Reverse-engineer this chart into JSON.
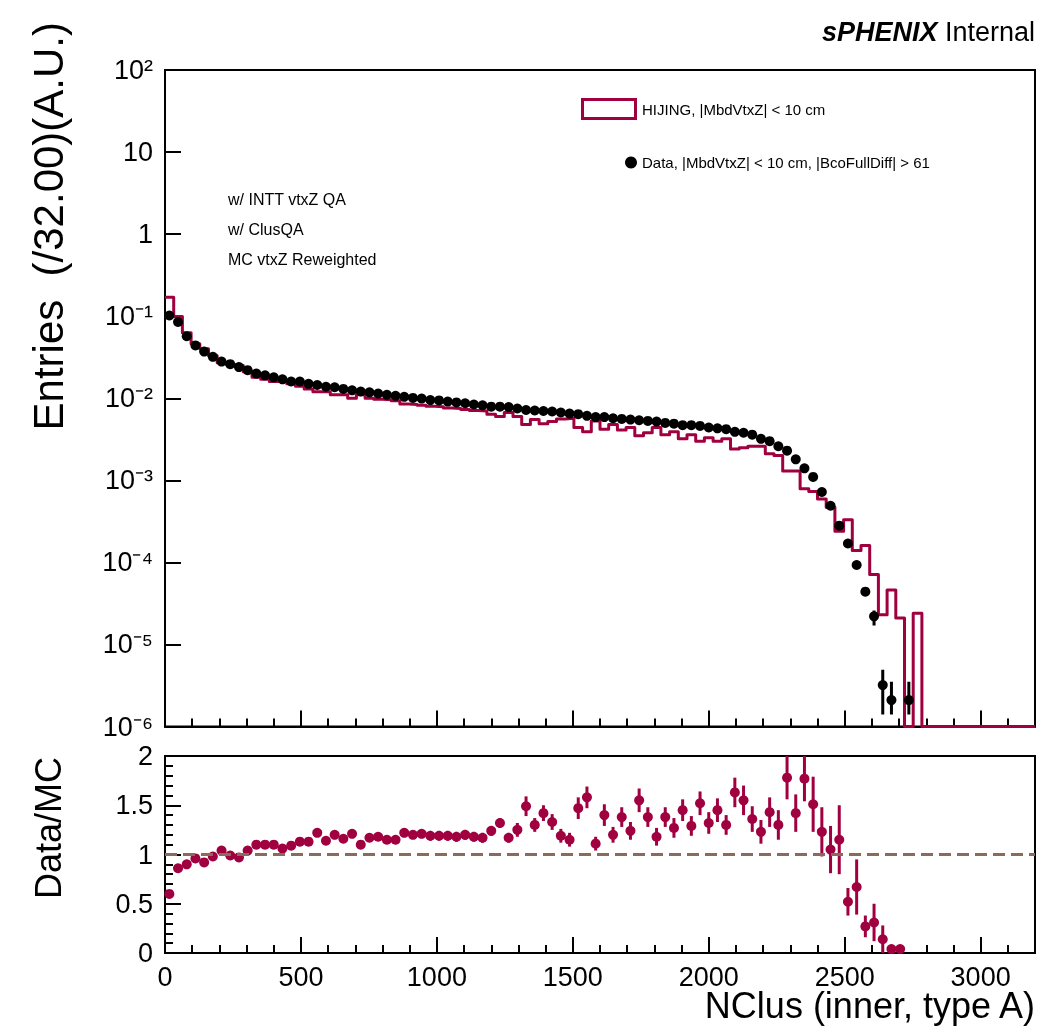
{
  "chart_data": [
    {
      "type": "histogram",
      "title": "sPHENIX Internal",
      "ylabel": "Entries  (/32.00)(A.U.)",
      "annotations": [
        "w/ INTT vtxZ QA",
        "w/ ClusQA",
        "MC vtxZ Reweighted"
      ],
      "bins": [
        0,
        32,
        64,
        96,
        128,
        160,
        192,
        224,
        256,
        288,
        320,
        352,
        384,
        416,
        448,
        480,
        512,
        544,
        576,
        608,
        640,
        672,
        704,
        736,
        768,
        800,
        832,
        864,
        896,
        928,
        960,
        992,
        1024,
        1056,
        1088,
        1120,
        1152,
        1184,
        1216,
        1248,
        1280,
        1312,
        1344,
        1376,
        1408,
        1440,
        1472,
        1504,
        1536,
        1568,
        1600,
        1632,
        1664,
        1696,
        1728,
        1760,
        1792,
        1824,
        1856,
        1888,
        1920,
        1952,
        1984,
        2016,
        2048,
        2080,
        2112,
        2144,
        2176,
        2208,
        2240,
        2272,
        2304,
        2336,
        2368,
        2400,
        2432,
        2464,
        2496,
        2528,
        2560,
        2592,
        2624,
        2656,
        2688,
        2720,
        2752,
        2784,
        2816,
        2848,
        2880,
        2912,
        2944,
        2976,
        3008,
        3040,
        3072,
        3104,
        3136,
        3168,
        3200
      ],
      "series": [
        {
          "name": "HIJING, |MbdVtxZ| < 10 cm",
          "type": "histogram",
          "color": "#a0003f",
          "values": [
            0.17,
            0.099,
            0.063,
            0.046,
            0.04,
            0.033,
            0.027,
            0.026,
            0.025,
            0.021,
            0.018,
            0.017,
            0.016,
            0.016,
            0.015,
            0.014,
            0.013,
            0.012,
            0.012,
            0.011,
            0.011,
            0.01,
            0.011,
            0.01,
            0.0097,
            0.0096,
            0.0093,
            0.0085,
            0.0084,
            0.0082,
            0.008,
            0.0079,
            0.0076,
            0.0075,
            0.0073,
            0.0071,
            0.007,
            0.0064,
            0.006,
            0.0067,
            0.006,
            0.0048,
            0.0055,
            0.0049,
            0.0052,
            0.0056,
            0.0057,
            0.0044,
            0.0039,
            0.0053,
            0.0042,
            0.0048,
            0.0041,
            0.0044,
            0.0035,
            0.0038,
            0.0044,
            0.0036,
            0.0039,
            0.0032,
            0.0036,
            0.003,
            0.0033,
            0.003,
            0.0032,
            0.0024,
            0.0025,
            0.0026,
            0.0026,
            0.0021,
            0.002,
            0.0013,
            0.0013,
            0.00079,
            0.00073,
            0.00059,
            0.00047,
            0.00024,
            0.00033,
            0.00014,
            0.00016,
            7.1e-05,
            2.3e-05,
            4.6e-05,
            2.1e-05,
            null,
            2.4e-05,
            null,
            null,
            null,
            null,
            null,
            null,
            null,
            null,
            null,
            null,
            null,
            null,
            null
          ]
        },
        {
          "name": "Data, |MbdVtxZ| < 10 cm, |BcoFullDiff| > 61",
          "type": "scatter",
          "color": "#000000",
          "x": [
            16,
            48,
            80,
            112,
            144,
            176,
            208,
            240,
            272,
            304,
            336,
            368,
            400,
            432,
            464,
            496,
            528,
            560,
            592,
            624,
            656,
            688,
            720,
            752,
            784,
            816,
            848,
            880,
            912,
            944,
            976,
            1008,
            1040,
            1072,
            1104,
            1136,
            1168,
            1200,
            1232,
            1264,
            1296,
            1328,
            1360,
            1392,
            1424,
            1456,
            1488,
            1520,
            1552,
            1584,
            1616,
            1648,
            1680,
            1712,
            1744,
            1776,
            1808,
            1840,
            1872,
            1904,
            1936,
            1968,
            2000,
            2032,
            2064,
            2096,
            2128,
            2160,
            2192,
            2224,
            2256,
            2288,
            2320,
            2352,
            2384,
            2416,
            2448,
            2480,
            2512,
            2544,
            2576,
            2608,
            2640,
            2672,
            2704,
            2736
          ],
          "values": [
            0.102,
            0.085,
            0.057,
            0.044,
            0.037,
            0.032,
            0.028,
            0.026,
            0.024,
            0.022,
            0.02,
            0.019,
            0.018,
            0.017,
            0.016,
            0.016,
            0.015,
            0.0145,
            0.0138,
            0.0136,
            0.013,
            0.0125,
            0.0121,
            0.0118,
            0.0114,
            0.011,
            0.0107,
            0.0104,
            0.0101,
            0.0099,
            0.0095,
            0.0094,
            0.0091,
            0.0089,
            0.0087,
            0.0084,
            0.0082,
            0.0079,
            0.0079,
            0.0078,
            0.0075,
            0.0072,
            0.0071,
            0.007,
            0.0069,
            0.0067,
            0.0065,
            0.0064,
            0.0061,
            0.0059,
            0.0059,
            0.0057,
            0.0056,
            0.0055,
            0.0054,
            0.0053,
            0.0052,
            0.005,
            0.0049,
            0.0047,
            0.0047,
            0.0046,
            0.0044,
            0.0043,
            0.0042,
            0.0039,
            0.0038,
            0.0036,
            0.0032,
            0.003,
            0.0026,
            0.0023,
            0.0018,
            0.0014,
            0.0011,
            0.00072,
            0.00049,
            0.00028,
            0.00017,
            9.3e-05,
            4.4e-05,
            2.2e-05,
            3.2e-06,
            2.1e-06,
            null,
            2.1e-06
          ],
          "errors": [
            null,
            null,
            null,
            null,
            null,
            null,
            null,
            null,
            null,
            null,
            null,
            null,
            null,
            null,
            null,
            null,
            null,
            null,
            null,
            null,
            null,
            null,
            null,
            null,
            null,
            null,
            null,
            null,
            null,
            null,
            null,
            null,
            null,
            null,
            null,
            null,
            null,
            null,
            null,
            null,
            null,
            null,
            null,
            null,
            null,
            null,
            null,
            null,
            null,
            null,
            null,
            null,
            null,
            null,
            null,
            null,
            null,
            null,
            null,
            null,
            null,
            null,
            null,
            null,
            null,
            null,
            null,
            null,
            null,
            null,
            null,
            null,
            null,
            null,
            null,
            null,
            null,
            null,
            null,
            null,
            null,
            [
              1.7e-05,
              2.6e-05
            ],
            [
              1.4e-06,
              4.9e-06
            ],
            [
              1.4e-06,
              3.5e-06
            ],
            null,
            [
              1.4e-06,
              3.5e-06
            ]
          ]
        }
      ],
      "xlim": [
        0,
        3200
      ],
      "xticks": [
        0,
        500,
        1000,
        1500,
        2000,
        2500,
        3000
      ],
      "ylim": [
        1e-06,
        100
      ],
      "yticks": [
        {
          "value": 1e-06,
          "label": "10⁻⁶"
        },
        {
          "value": 1e-05,
          "label": "10⁻⁵"
        },
        {
          "value": 0.0001,
          "label": "10⁻⁴"
        },
        {
          "value": 0.001,
          "label": "10⁻³"
        },
        {
          "value": 0.01,
          "label": "10⁻²"
        },
        {
          "value": 0.1,
          "label": "10⁻¹"
        },
        1,
        10,
        {
          "value": 100,
          "label": "10²"
        }
      ],
      "log": "y",
      "tick_labels": "y",
      "legend": "top right",
      "marker": "circle"
    },
    {
      "type": "scatter",
      "xlabel": "NClus (inner, type A)",
      "ylabel": "Data/MC",
      "color": "#a0003f",
      "marker": "circle",
      "x": [
        16,
        48,
        80,
        112,
        144,
        176,
        208,
        240,
        272,
        304,
        336,
        368,
        400,
        432,
        464,
        496,
        528,
        560,
        592,
        624,
        656,
        688,
        720,
        752,
        784,
        816,
        848,
        880,
        912,
        944,
        976,
        1008,
        1040,
        1072,
        1104,
        1136,
        1168,
        1200,
        1232,
        1264,
        1296,
        1328,
        1360,
        1392,
        1424,
        1456,
        1488,
        1520,
        1552,
        1584,
        1616,
        1648,
        1680,
        1712,
        1744,
        1776,
        1808,
        1840,
        1872,
        1904,
        1936,
        1968,
        2000,
        2032,
        2064,
        2096,
        2128,
        2160,
        2192,
        2224,
        2256,
        2288,
        2320,
        2352,
        2384,
        2416,
        2448,
        2480,
        2512,
        2544,
        2576,
        2608,
        2640,
        2672,
        2704
      ],
      "values": [
        0.6,
        0.86,
        0.9,
        0.96,
        0.92,
        0.98,
        1.04,
        0.99,
        0.97,
        1.04,
        1.1,
        1.1,
        1.1,
        1.06,
        1.09,
        1.13,
        1.13,
        1.22,
        1.14,
        1.2,
        1.16,
        1.21,
        1.1,
        1.17,
        1.18,
        1.15,
        1.15,
        1.22,
        1.2,
        1.21,
        1.19,
        1.19,
        1.19,
        1.18,
        1.2,
        1.18,
        1.17,
        1.24,
        1.32,
        1.17,
        1.25,
        1.49,
        1.3,
        1.42,
        1.33,
        1.19,
        1.15,
        1.47,
        1.58,
        1.11,
        1.4,
        1.2,
        1.38,
        1.24,
        1.55,
        1.38,
        1.18,
        1.38,
        1.27,
        1.45,
        1.29,
        1.52,
        1.32,
        1.45,
        1.3,
        1.63,
        1.55,
        1.36,
        1.23,
        1.43,
        1.3,
        1.78,
        1.42,
        1.77,
        1.51,
        1.23,
        1.05,
        1.15,
        0.52,
        0.67,
        0.27,
        0.31,
        0.14,
        0.04,
        0.04
      ],
      "errors": [
        0.02,
        0.02,
        0.02,
        0.02,
        0.02,
        0.02,
        0.02,
        0.02,
        0.02,
        0.02,
        0.03,
        0.03,
        0.03,
        0.03,
        0.03,
        0.03,
        0.03,
        0.03,
        0.03,
        0.03,
        0.04,
        0.04,
        0.04,
        0.04,
        0.04,
        0.04,
        0.04,
        0.04,
        0.04,
        0.04,
        0.05,
        0.05,
        0.05,
        0.05,
        0.05,
        0.05,
        0.05,
        0.05,
        0.05,
        0.05,
        0.07,
        0.1,
        0.07,
        0.08,
        0.08,
        0.07,
        0.07,
        0.11,
        0.11,
        0.07,
        0.11,
        0.08,
        0.1,
        0.09,
        0.12,
        0.1,
        0.09,
        0.1,
        0.1,
        0.11,
        0.1,
        0.12,
        0.11,
        0.12,
        0.1,
        0.15,
        0.15,
        0.13,
        0.12,
        0.15,
        0.15,
        0.22,
        0.19,
        0.23,
        0.28,
        0.25,
        0.24,
        0.35,
        0.14,
        0.28,
        0.11,
        0.19,
        0.14,
        null,
        null
      ],
      "ref_lines": [
        {
          "axis": "y",
          "value": 1,
          "color": "#8c6a5a",
          "line_style": "dashed"
        }
      ],
      "xlim": [
        0,
        3200
      ],
      "xticks": [
        0,
        500,
        1000,
        1500,
        2000,
        2500,
        3000
      ],
      "ylim": [
        0,
        2
      ],
      "yticks": [
        0,
        0.5,
        1,
        1.5,
        2
      ]
    }
  ]
}
